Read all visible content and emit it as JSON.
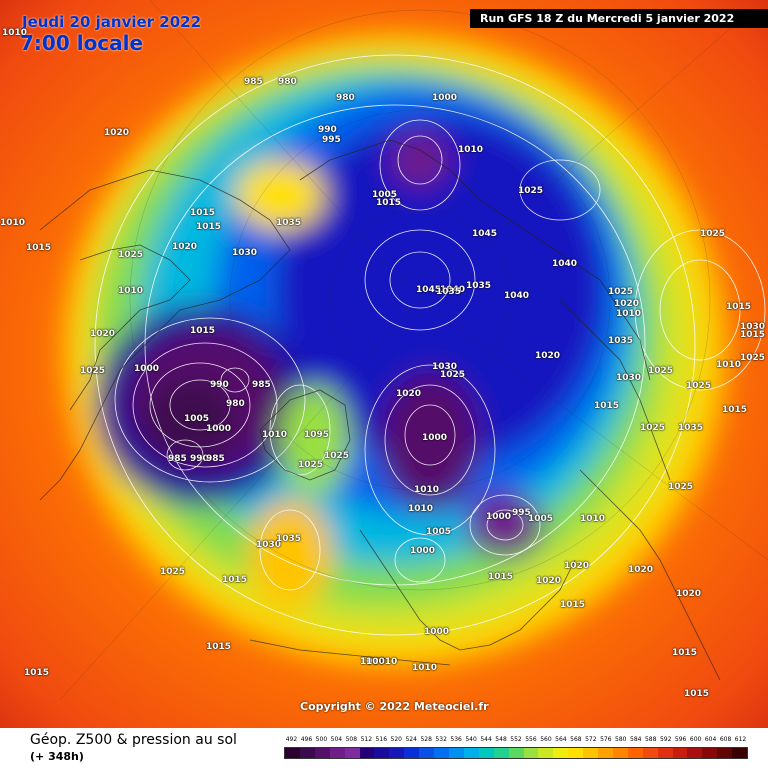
{
  "header": {
    "date": "Jeudi 20 janvier 2022",
    "time": "7:00 locale",
    "run": "Run GFS 18 Z du Mercredi 5 janvier 2022"
  },
  "copyright": "Copyright © 2022 Meteociel.fr",
  "footer": {
    "title": "Géop. Z500 & pression au sol",
    "subtitle": "(+ 348h)"
  },
  "legend": {
    "ticks": [
      "492",
      "496",
      "500",
      "504",
      "508",
      "512",
      "516",
      "520",
      "524",
      "528",
      "532",
      "536",
      "540",
      "544",
      "548",
      "552",
      "556",
      "560",
      "564",
      "568",
      "572",
      "576",
      "580",
      "584",
      "588",
      "592",
      "596",
      "600",
      "604",
      "608",
      "612"
    ],
    "colors": [
      "#2a0030",
      "#3d0a4d",
      "#55106a",
      "#6e1d8a",
      "#7e2ba0",
      "#23007a",
      "#1a0c9c",
      "#1616bb",
      "#0a2fd8",
      "#0850e6",
      "#0070f0",
      "#0090f0",
      "#00b0e8",
      "#00c8c0",
      "#22d090",
      "#5ad860",
      "#9ae040",
      "#cce820",
      "#f0ee10",
      "#ffe000",
      "#ffc400",
      "#ffa200",
      "#ff8400",
      "#ff6400",
      "#f24a10",
      "#e03010",
      "#c81e10",
      "#a81010",
      "#880808",
      "#600404",
      "#380000"
    ]
  },
  "pressure_labels": [
    {
      "text": "1010"
    },
    {
      "text": "1020"
    },
    {
      "text": "1010"
    },
    {
      "text": "1015"
    },
    {
      "text": "985"
    },
    {
      "text": "980"
    },
    {
      "text": "990"
    },
    {
      "text": "995"
    },
    {
      "text": "980"
    },
    {
      "text": "1000"
    },
    {
      "text": "1010"
    },
    {
      "text": "1005"
    },
    {
      "text": "1015"
    },
    {
      "text": "1025"
    },
    {
      "text": "1015"
    },
    {
      "text": "1015"
    },
    {
      "text": "1030"
    },
    {
      "text": "1035"
    },
    {
      "text": "1025"
    },
    {
      "text": "1020"
    },
    {
      "text": "1010"
    },
    {
      "text": "1020"
    },
    {
      "text": "1025"
    },
    {
      "text": "1015"
    },
    {
      "text": "1000"
    },
    {
      "text": "990"
    },
    {
      "text": "985"
    },
    {
      "text": "980"
    },
    {
      "text": "1005"
    },
    {
      "text": "1000"
    },
    {
      "text": "985"
    },
    {
      "text": "990"
    },
    {
      "text": "985"
    },
    {
      "text": "1010"
    },
    {
      "text": "1095"
    },
    {
      "text": "1025"
    },
    {
      "text": "1025"
    },
    {
      "text": "1030"
    },
    {
      "text": "1035"
    },
    {
      "text": "1025"
    },
    {
      "text": "1015"
    },
    {
      "text": "1015"
    },
    {
      "text": "1015"
    },
    {
      "text": "1045"
    },
    {
      "text": "1040"
    },
    {
      "text": "1035"
    },
    {
      "text": "1035"
    },
    {
      "text": "1040"
    },
    {
      "text": "1045"
    },
    {
      "text": "1040"
    },
    {
      "text": "1020"
    },
    {
      "text": "1030"
    },
    {
      "text": "1025"
    },
    {
      "text": "1020"
    },
    {
      "text": "1000"
    },
    {
      "text": "1010"
    },
    {
      "text": "1010"
    },
    {
      "text": "1005"
    },
    {
      "text": "1000"
    },
    {
      "text": "1000"
    },
    {
      "text": "995"
    },
    {
      "text": "1005"
    },
    {
      "text": "1015"
    },
    {
      "text": "1020"
    },
    {
      "text": "1015"
    },
    {
      "text": "1000"
    },
    {
      "text": "1010"
    },
    {
      "text": "1020"
    },
    {
      "text": "1020"
    },
    {
      "text": "1030"
    },
    {
      "text": "1025"
    },
    {
      "text": "1015"
    },
    {
      "text": "1025"
    },
    {
      "text": "1035"
    },
    {
      "text": "1025"
    },
    {
      "text": "1025"
    },
    {
      "text": "1020"
    },
    {
      "text": "1010"
    },
    {
      "text": "1015"
    },
    {
      "text": "1035"
    },
    {
      "text": "1025"
    },
    {
      "text": "1015"
    },
    {
      "text": "1030"
    },
    {
      "text": "1025"
    },
    {
      "text": "1010"
    },
    {
      "text": "1015"
    },
    {
      "text": "1025"
    },
    {
      "text": "1020"
    },
    {
      "text": "1015"
    },
    {
      "text": "1015"
    },
    {
      "text": "1010"
    },
    {
      "text": "10010"
    },
    {
      "text": "1010"
    }
  ]
}
